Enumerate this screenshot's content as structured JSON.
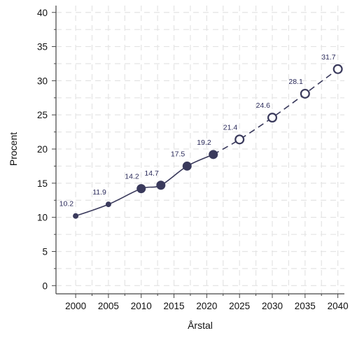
{
  "chart_data": {
    "type": "line",
    "xlabel": "Årstal",
    "ylabel": "Procent",
    "xlim": [
      1997,
      2041
    ],
    "ylim": [
      -1.2,
      41
    ],
    "x_ticks": [
      2000,
      2005,
      2010,
      2015,
      2020,
      2025,
      2030,
      2035,
      2040
    ],
    "y_ticks": [
      0,
      5,
      10,
      15,
      20,
      25,
      30,
      35,
      40
    ],
    "grid": true,
    "color": "#3a3a5c",
    "series": [
      {
        "style": "solid",
        "marker": "filled",
        "points": [
          {
            "x": 2000,
            "y": 10.2,
            "label": "10.2",
            "marker_size": "small"
          },
          {
            "x": 2005,
            "y": 11.9,
            "label": "11.9",
            "marker_size": "small"
          },
          {
            "x": 2010,
            "y": 14.2,
            "label": "14.2",
            "marker_size": "large"
          },
          {
            "x": 2013,
            "y": 14.7,
            "label": "14.7",
            "marker_size": "large"
          },
          {
            "x": 2017,
            "y": 17.5,
            "label": "17.5",
            "marker_size": "large"
          },
          {
            "x": 2021,
            "y": 19.2,
            "label": "19.2",
            "marker_size": "large"
          }
        ]
      },
      {
        "style": "dashed",
        "marker": "hollow",
        "points": [
          {
            "x": 2021,
            "y": 19.2,
            "label": "",
            "marker_size": "none"
          },
          {
            "x": 2025,
            "y": 21.4,
            "label": "21.4",
            "marker_size": "large"
          },
          {
            "x": 2030,
            "y": 24.6,
            "label": "24.6",
            "marker_size": "large"
          },
          {
            "x": 2035,
            "y": 28.1,
            "label": "28.1",
            "marker_size": "large"
          },
          {
            "x": 2040,
            "y": 31.7,
            "label": "31.7",
            "marker_size": "large"
          }
        ]
      }
    ]
  }
}
